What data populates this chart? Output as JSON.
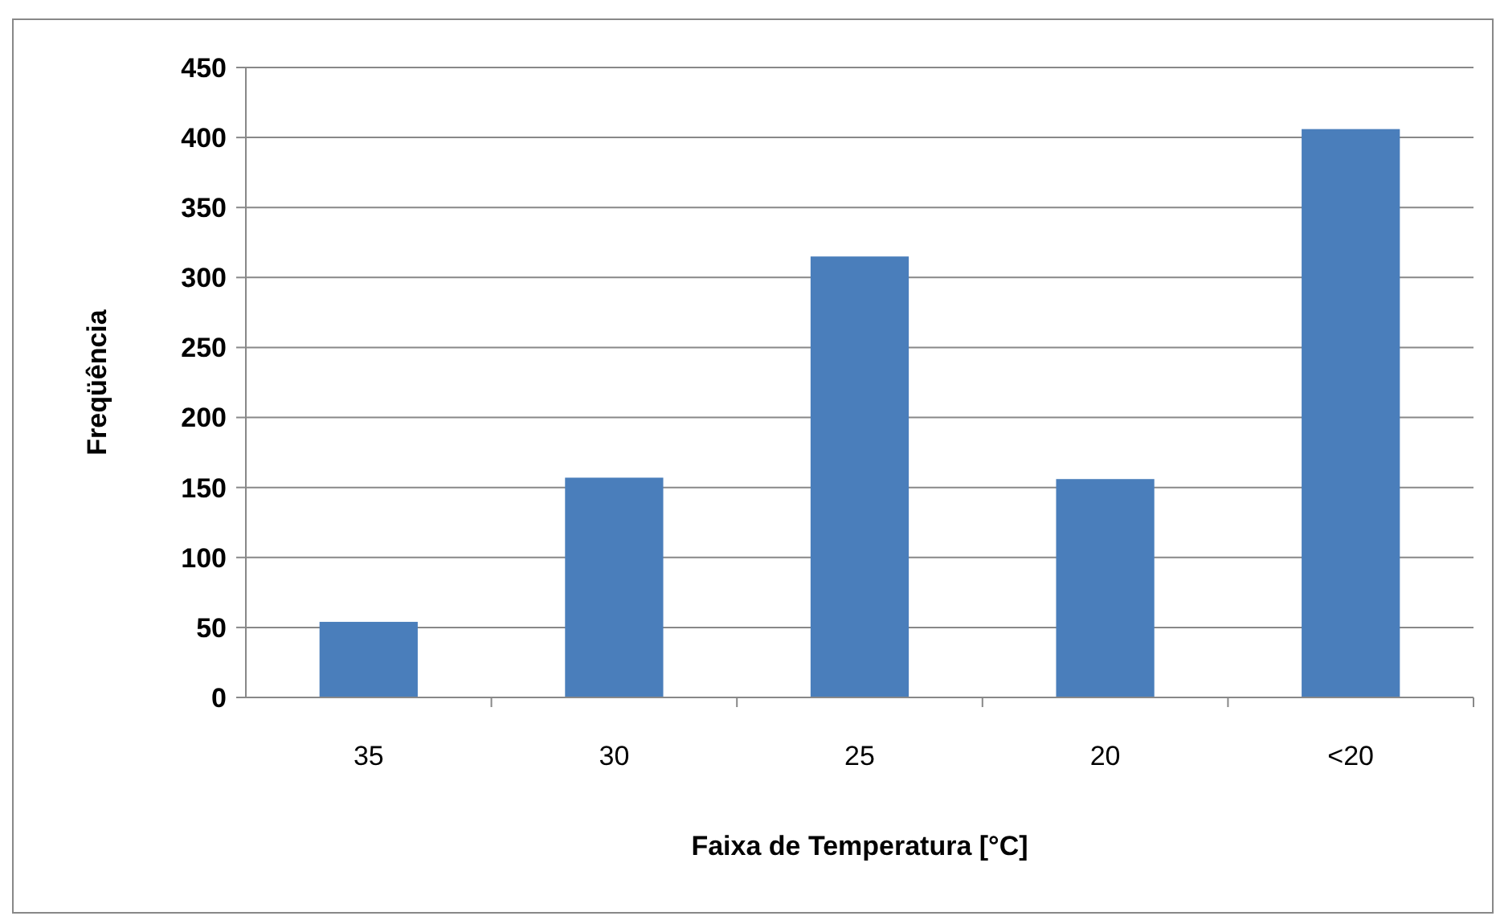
{
  "chart_data": {
    "type": "bar",
    "xlabel": "Faixa de Temperatura [°C]",
    "ylabel": "Freqüência",
    "categories": [
      "35",
      "30",
      "25",
      "20",
      "<20"
    ],
    "values": [
      54,
      157,
      315,
      156,
      406
    ],
    "color": "#4a7ebb",
    "ylim": [
      0,
      450
    ],
    "yticks": [
      0,
      50,
      100,
      150,
      200,
      250,
      300,
      350,
      400,
      450
    ],
    "grid": "y"
  }
}
